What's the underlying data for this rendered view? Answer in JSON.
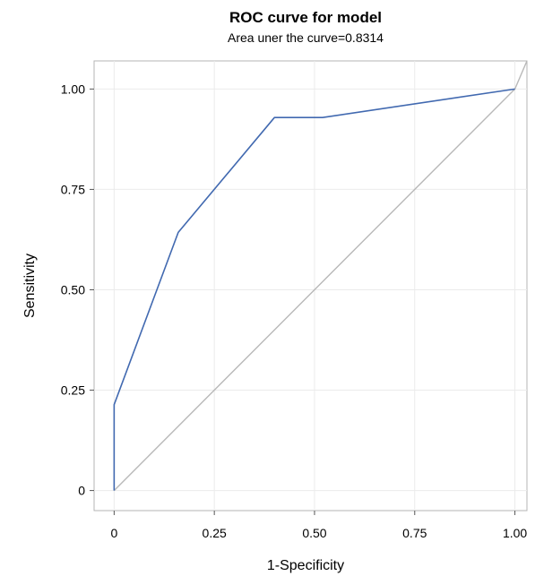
{
  "chart_data": {
    "type": "line",
    "title": "ROC curve for model",
    "subtitle": "Area uner the curve=0.8314",
    "xlabel": "1-Specificity",
    "ylabel": "Sensitivity",
    "xlim": [
      -0.05,
      1.03
    ],
    "ylim": [
      -0.05,
      1.07
    ],
    "x_ticks": [
      0,
      0.25,
      0.5,
      0.75,
      1.0
    ],
    "x_tick_labels": [
      "0",
      "0.25",
      "0.50",
      "0.75",
      "1.00"
    ],
    "y_ticks": [
      0,
      0.25,
      0.5,
      0.75,
      1.0
    ],
    "y_tick_labels": [
      "0",
      "0.25",
      "0.50",
      "0.75",
      "1.00"
    ],
    "grid": true,
    "legend": "none",
    "series": [
      {
        "color": "#4169b0",
        "points": [
          [
            0,
            0
          ],
          [
            0,
            0.214
          ],
          [
            0.16,
            0.643
          ],
          [
            0.4,
            0.929
          ],
          [
            0.52,
            0.929
          ],
          [
            1.0,
            1.0
          ]
        ]
      }
    ],
    "reference_line": {
      "color": "#b8b8b8",
      "points": [
        [
          0,
          0
        ],
        [
          1.0,
          1.0
        ]
      ]
    }
  }
}
